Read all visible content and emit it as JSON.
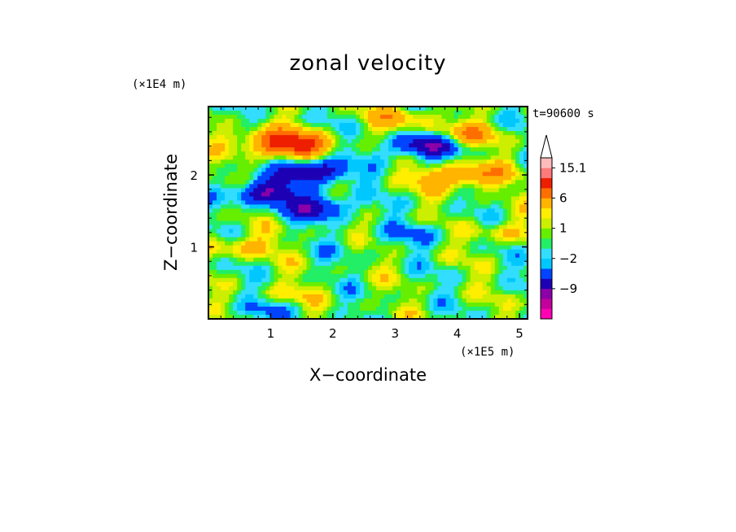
{
  "chart_data": {
    "type": "heatmap",
    "title": "zonal velocity",
    "xlabel": "X−coordinate",
    "ylabel": "Z−coordinate",
    "x_scale_label": "(×1E5 m)",
    "y_scale_label": "(×1E4 m)",
    "time_label": "t=90600 s",
    "xlim": [
      0,
      5.13
    ],
    "ylim": [
      0,
      2.95
    ],
    "x_ticks": [
      1,
      2,
      3,
      4,
      5
    ],
    "x_tick_labels": [
      "1",
      "2",
      "3",
      "4",
      "5"
    ],
    "y_ticks": [
      1,
      2
    ],
    "y_tick_labels": [
      "1",
      "2"
    ],
    "colorbar": {
      "levels": [
        -15,
        -12,
        -9,
        -6,
        -3,
        -2,
        -1,
        0,
        1,
        2,
        3,
        6,
        9,
        12,
        15.1
      ],
      "tick_labels": [
        "15.1",
        "6",
        "1",
        "−2",
        "−9"
      ],
      "tick_values": [
        15.1,
        6,
        1,
        -2,
        -9
      ],
      "colors": [
        "#ff00b4",
        "#c3009b",
        "#8c00aa",
        "#1e00b4",
        "#0044ff",
        "#00c8ff",
        "#33ddff",
        "#22ee66",
        "#66ee00",
        "#ccee00",
        "#ffee00",
        "#ffb400",
        "#ff6e00",
        "#ee1e00",
        "#ff7a7a",
        "#ffbbbb"
      ],
      "extend_max": true
    },
    "features": [
      {
        "x": 1.4,
        "z": 2.4,
        "u": 9
      },
      {
        "x": 1.0,
        "z": 2.5,
        "u": 6
      },
      {
        "x": 0.9,
        "z": 1.75,
        "u": -9
      },
      {
        "x": 1.7,
        "z": 2.05,
        "u": -10
      },
      {
        "x": 1.75,
        "z": 1.55,
        "u": -8
      },
      {
        "x": 3.45,
        "z": 2.4,
        "u": -9
      },
      {
        "x": 4.1,
        "z": 2.55,
        "u": 5
      },
      {
        "x": 3.1,
        "z": 2.8,
        "u": 4
      },
      {
        "x": 3.4,
        "z": 1.2,
        "u": -2.5
      },
      {
        "x": 0.5,
        "z": 1.0,
        "u": 4
      },
      {
        "x": 4.7,
        "z": 1.2,
        "u": 3
      },
      {
        "x": 1.2,
        "z": 0.3,
        "u": 2
      },
      {
        "x": 3.8,
        "z": 1.95,
        "u": 4
      },
      {
        "x": 0.8,
        "z": 0.1,
        "u": -3
      },
      {
        "x": 2.4,
        "z": 1.0,
        "u": -1
      },
      {
        "x": 4.3,
        "z": 2.0,
        "u": 5
      }
    ]
  }
}
